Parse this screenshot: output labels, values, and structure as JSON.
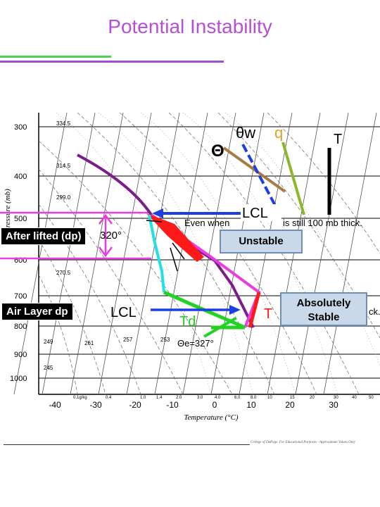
{
  "title": "Potential Instability",
  "y_axis": {
    "title": "Pressure (mb)",
    "ticks": [
      "300",
      "400",
      "500",
      "600",
      "700",
      "800",
      "900",
      "1000"
    ]
  },
  "x_axis": {
    "title": "Temperature (°C)",
    "ticks": [
      "-40",
      "-30",
      "-20",
      "-10",
      "0",
      "10",
      "20",
      "30"
    ]
  },
  "mixing_ratio_labels": [
    "0.1g/kg",
    "0.4",
    "1.0",
    "1.4",
    "2.0",
    "3.0",
    "4.0",
    "6.0",
    "8.0",
    "10",
    "15",
    "20",
    "30",
    "40",
    "50"
  ],
  "height_labels": [
    "334.5",
    "314.5",
    "299.0",
    "270.5",
    "261",
    "257",
    "253",
    "249",
    "245"
  ],
  "line_labels": {
    "theta": "Θ",
    "theta_w": "θw",
    "q": "q",
    "T": "T",
    "lcl_top": "LCL",
    "lcl_bottom": "LCL",
    "td": "Td",
    "t_low": "T",
    "theta_320": "320°",
    "theta_e": "Θe=327°"
  },
  "annotations": {
    "even_when": "Even when",
    "thick": "is still 100 mb thick.",
    "thick_right": "ck."
  },
  "boxes": {
    "after_lifted": "After lifted (dp)",
    "air_layer": "Air Layer dp",
    "unstable": "Unstable",
    "absolutely_stable": "Absolutely Stable"
  },
  "footer": "College of DuPage. For Educational Purposes - Approximate Values Only",
  "colors": {
    "title": "#b54fd6",
    "magenta": "#e83de0",
    "purple": "#7b1d8a",
    "red": "#ff1a1a",
    "blue": "#1b3fe0",
    "green": "#22d322",
    "cyan": "#22e0e8",
    "brown": "#a87a45",
    "olive": "#8ab82a",
    "callout_bg": "#c9d9ea"
  }
}
